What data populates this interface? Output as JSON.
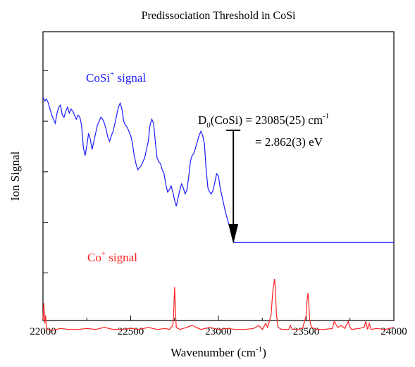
{
  "chart_data": {
    "type": "line",
    "title": "Predissociation Threshold in CoSi",
    "xlabel": {
      "main": "Wavenumber (cm",
      "sup": "-1",
      "tail": ")"
    },
    "ylabel": "Ion Signal",
    "xlim": [
      22000,
      24000
    ],
    "ylim": [
      0,
      10
    ],
    "xticks": [
      "22000",
      "22500",
      "23000",
      "23500",
      "24000"
    ],
    "y_tick_labels_shown": false,
    "grid": false,
    "series": [
      {
        "name": "CoSi+ signal",
        "label": {
          "main": "CoSi",
          "sup": "+",
          "tail": " signal"
        },
        "color": "#1a1aff",
        "x": [
          22000,
          22010,
          22020,
          22030,
          22040,
          22050,
          22060,
          22070,
          22080,
          22090,
          22100,
          22110,
          22120,
          22130,
          22140,
          22150,
          22160,
          22170,
          22180,
          22190,
          22200,
          22210,
          22220,
          22230,
          22240,
          22250,
          22260,
          22270,
          22280,
          22290,
          22300,
          22310,
          22320,
          22330,
          22340,
          22350,
          22360,
          22370,
          22380,
          22390,
          22400,
          22410,
          22420,
          22430,
          22440,
          22450,
          22460,
          22470,
          22480,
          22490,
          22500,
          22510,
          22520,
          22530,
          22540,
          22550,
          22560,
          22570,
          22580,
          22590,
          22600,
          22610,
          22620,
          22630,
          22640,
          22650,
          22660,
          22670,
          22680,
          22690,
          22700,
          22710,
          22720,
          22730,
          22740,
          22750,
          22760,
          22770,
          22780,
          22790,
          22800,
          22810,
          22820,
          22830,
          22840,
          22850,
          22860,
          22870,
          22880,
          22890,
          22900,
          22910,
          22920,
          22930,
          22940,
          22950,
          22960,
          22970,
          22980,
          22990,
          23000,
          23010,
          23020,
          23030,
          23040,
          23050,
          23060,
          23070,
          23080,
          23090,
          23100,
          23200,
          23300,
          23400,
          23500,
          23600,
          23700,
          23800,
          23900,
          24000
        ],
        "y": [
          8.2,
          8.0,
          8.1,
          7.9,
          7.6,
          7.3,
          7.1,
          6.9,
          7.4,
          7.7,
          7.8,
          7.3,
          7.2,
          7.5,
          7.7,
          7.4,
          7.6,
          7.5,
          7.3,
          7.1,
          7.3,
          7.2,
          6.8,
          5.7,
          5.3,
          5.8,
          6.4,
          6.1,
          5.6,
          6.0,
          6.4,
          6.8,
          7.0,
          7.2,
          7.1,
          6.9,
          6.6,
          6.2,
          6.0,
          6.3,
          6.5,
          6.9,
          7.3,
          7.7,
          7.9,
          7.6,
          7.0,
          6.8,
          6.7,
          6.5,
          6.3,
          5.9,
          5.3,
          4.9,
          4.6,
          4.7,
          4.8,
          5.0,
          5.2,
          5.6,
          6.0,
          6.8,
          7.1,
          6.9,
          6.0,
          5.2,
          5.0,
          4.9,
          4.6,
          4.4,
          3.9,
          3.5,
          3.6,
          3.8,
          3.5,
          3.1,
          2.8,
          3.2,
          3.6,
          3.9,
          3.7,
          3.4,
          3.6,
          4.2,
          5.0,
          5.3,
          5.4,
          5.7,
          6.0,
          6.3,
          6.5,
          6.3,
          5.9,
          4.6,
          3.7,
          3.5,
          3.4,
          3.6,
          4.0,
          4.4,
          4.3,
          3.7,
          3.3,
          2.9,
          2.5,
          2.2,
          1.9,
          1.7,
          1.2,
          1.0,
          1.0,
          1.0,
          1.0,
          1.0,
          1.0,
          1.0,
          1.0,
          1.0,
          1.0,
          1.0
        ]
      },
      {
        "name": "Co+ signal",
        "label": {
          "main": "Co",
          "sup": "+",
          "tail": " signal"
        },
        "color": "#ff2020",
        "x": [
          22000,
          22005,
          22010,
          22015,
          22020,
          22030,
          22050,
          22100,
          22150,
          22200,
          22250,
          22300,
          22350,
          22400,
          22450,
          22500,
          22550,
          22600,
          22650,
          22700,
          22720,
          22740,
          22745,
          22750,
          22755,
          22760,
          22780,
          22800,
          22850,
          22900,
          22950,
          23000,
          23050,
          23100,
          23150,
          23200,
          23230,
          23250,
          23270,
          23280,
          23300,
          23310,
          23320,
          23325,
          23330,
          23340,
          23360,
          23400,
          23410,
          23420,
          23450,
          23480,
          23500,
          23505,
          23510,
          23515,
          23520,
          23530,
          23560,
          23600,
          23650,
          23660,
          23680,
          23700,
          23720,
          23740,
          23750,
          23760,
          23800,
          23830,
          23840,
          23850,
          23860,
          23870,
          23900,
          23950,
          24000
        ],
        "y": [
          -2.8,
          -2.0,
          -3.0,
          -2.6,
          -3.3,
          -3.3,
          -3.35,
          -3.25,
          -3.3,
          -3.3,
          -3.25,
          -3.3,
          -3.2,
          -3.3,
          -3.3,
          -3.25,
          -3.3,
          -3.2,
          -3.3,
          -3.25,
          -3.3,
          -3.1,
          -2.5,
          -1.2,
          -2.4,
          -3.2,
          -3.3,
          -3.25,
          -3.1,
          -3.3,
          -3.2,
          -3.3,
          -3.25,
          -3.3,
          -3.3,
          -3.25,
          -3.1,
          -3.3,
          -3.0,
          -3.2,
          -2.6,
          -1.4,
          -0.8,
          -1.3,
          -2.5,
          -3.2,
          -3.3,
          -3.3,
          -3.1,
          -3.3,
          -3.3,
          -3.25,
          -2.6,
          -1.9,
          -1.5,
          -2.0,
          -2.8,
          -3.2,
          -3.3,
          -3.3,
          -3.25,
          -2.9,
          -3.2,
          -3.1,
          -3.25,
          -2.9,
          -3.2,
          -3.3,
          -3.25,
          -3.2,
          -2.9,
          -3.3,
          -3.0,
          -3.3,
          -3.25,
          -3.3,
          -3.2
        ]
      }
    ],
    "annotations": {
      "d0_line1": {
        "main": "D",
        "sub": "0",
        "mid": "(CoSi) = 23085(25) cm",
        "sup": "-1"
      },
      "d0_line2": "=  2.862(3) eV",
      "arrow_x": 23085
    }
  }
}
